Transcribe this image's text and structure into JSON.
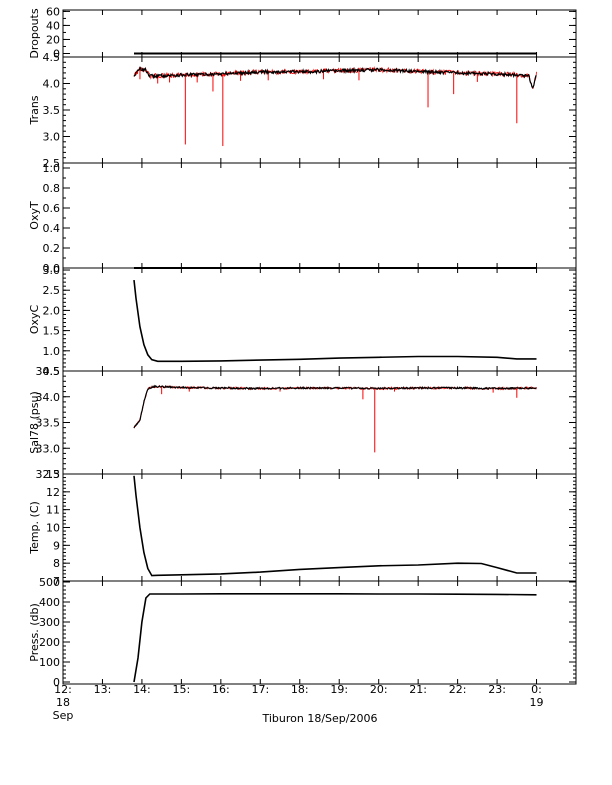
{
  "chart_data": {
    "type": "line",
    "footer_label": "Tiburon 18/Sep/2006",
    "colors": {
      "primary": "#000000",
      "raw": "#ff0000"
    },
    "x_axis": {
      "range_hours": [
        12,
        25
      ],
      "ticks": [
        {
          "hour": 12,
          "label": "12:",
          "sub1": "18",
          "sub2": "Sep"
        },
        {
          "hour": 13,
          "label": "13:"
        },
        {
          "hour": 14,
          "label": "14:"
        },
        {
          "hour": 15,
          "label": "15:"
        },
        {
          "hour": 16,
          "label": "16:"
        },
        {
          "hour": 17,
          "label": "17:"
        },
        {
          "hour": 18,
          "label": "18:"
        },
        {
          "hour": 19,
          "label": "19:"
        },
        {
          "hour": 20,
          "label": "20:"
        },
        {
          "hour": 21,
          "label": "21:"
        },
        {
          "hour": 22,
          "label": "22:"
        },
        {
          "hour": 23,
          "label": "23:"
        },
        {
          "hour": 24,
          "label": "0:",
          "sub1": "19"
        }
      ]
    },
    "panels": [
      {
        "id": "dropouts",
        "ylabel": "Dropouts",
        "ylim": [
          -5,
          62
        ],
        "ticks": [
          {
            "v": 0,
            "l": "0"
          },
          {
            "v": 20,
            "l": "20"
          },
          {
            "v": 40,
            "l": "40"
          },
          {
            "v": 60,
            "l": "60"
          }
        ],
        "minor": 10,
        "series": [
          {
            "style": "thick",
            "points": [
              [
                13.8,
                0
              ],
              [
                24.0,
                0
              ]
            ]
          }
        ]
      },
      {
        "id": "trans",
        "ylabel": "Trans",
        "ylim": [
          2.5,
          4.5
        ],
        "ticks": [
          {
            "v": 2.5,
            "l": "2.5"
          },
          {
            "v": 3.0,
            "l": "3.0"
          },
          {
            "v": 3.5,
            "l": "3.5"
          },
          {
            "v": 4.0,
            "l": "4.0"
          },
          {
            "v": 4.5,
            "l": "4.5"
          }
        ],
        "minor": 0.1,
        "spikes": [
          [
            13.95,
            4.08
          ],
          [
            14.4,
            4.0
          ],
          [
            14.7,
            4.02
          ],
          [
            15.1,
            2.85
          ],
          [
            15.4,
            4.02
          ],
          [
            15.8,
            3.85
          ],
          [
            16.05,
            2.82
          ],
          [
            16.5,
            4.05
          ],
          [
            17.2,
            4.06
          ],
          [
            18.6,
            4.08
          ],
          [
            19.5,
            4.06
          ],
          [
            21.25,
            3.55
          ],
          [
            21.9,
            3.8
          ],
          [
            22.5,
            4.03
          ],
          [
            23.5,
            3.25
          ]
        ],
        "series": [
          {
            "style": "noisy",
            "noise": 0.03,
            "points": [
              [
                13.8,
                4.15
              ],
              [
                13.95,
                4.28
              ],
              [
                14.1,
                4.25
              ],
              [
                14.2,
                4.14
              ],
              [
                15.0,
                4.16
              ],
              [
                16.0,
                4.18
              ],
              [
                17.0,
                4.22
              ],
              [
                18.0,
                4.22
              ],
              [
                19.0,
                4.24
              ],
              [
                20.0,
                4.26
              ],
              [
                21.0,
                4.23
              ],
              [
                22.0,
                4.2
              ],
              [
                23.0,
                4.18
              ],
              [
                23.8,
                4.15
              ],
              [
                23.9,
                3.9
              ],
              [
                24.0,
                4.18
              ]
            ]
          }
        ]
      },
      {
        "id": "oxyt",
        "ylabel": "OxyT",
        "ylim": [
          0,
          1.05
        ],
        "ticks": [
          {
            "v": 0,
            "l": "0.0"
          },
          {
            "v": 0.2,
            "l": "0.2"
          },
          {
            "v": 0.4,
            "l": "0.4"
          },
          {
            "v": 0.6,
            "l": "0.6"
          },
          {
            "v": 0.8,
            "l": "0.8"
          },
          {
            "v": 1.0,
            "l": "1.0"
          }
        ],
        "minor": 0.1,
        "series": [
          {
            "style": "thick",
            "points": [
              [
                13.8,
                0
              ],
              [
                24.0,
                0
              ]
            ]
          }
        ]
      },
      {
        "id": "oxyc",
        "ylabel": "OxyC",
        "ylim": [
          0.5,
          3.05
        ],
        "ticks": [
          {
            "v": 0.5,
            "l": "0.5"
          },
          {
            "v": 1.0,
            "l": "1.0"
          },
          {
            "v": 1.5,
            "l": "1.5"
          },
          {
            "v": 2.0,
            "l": "2.0"
          },
          {
            "v": 2.5,
            "l": "2.5"
          },
          {
            "v": 3.0,
            "l": "3.0"
          }
        ],
        "minor": 0.1,
        "series": [
          {
            "style": "line",
            "points": [
              [
                13.8,
                2.75
              ],
              [
                13.85,
                2.3
              ],
              [
                13.95,
                1.6
              ],
              [
                14.05,
                1.15
              ],
              [
                14.15,
                0.9
              ],
              [
                14.25,
                0.78
              ],
              [
                14.4,
                0.74
              ],
              [
                15.0,
                0.74
              ],
              [
                16.0,
                0.75
              ],
              [
                17.0,
                0.77
              ],
              [
                18.0,
                0.79
              ],
              [
                19.0,
                0.82
              ],
              [
                20.0,
                0.84
              ],
              [
                21.0,
                0.86
              ],
              [
                22.0,
                0.86
              ],
              [
                23.0,
                0.84
              ],
              [
                23.5,
                0.8
              ],
              [
                24.0,
                0.8
              ]
            ]
          }
        ]
      },
      {
        "id": "sal78",
        "ylabel": "Sal78 (psu)",
        "ylim": [
          32.5,
          34.5
        ],
        "ticks": [
          {
            "v": 32.5,
            "l": "32.5"
          },
          {
            "v": 33.0,
            "l": "33.0"
          },
          {
            "v": 33.5,
            "l": "33.5"
          },
          {
            "v": 34.0,
            "l": "34.0"
          },
          {
            "v": 34.5,
            "l": "34.5"
          }
        ],
        "minor": 0.1,
        "spikes": [
          [
            14.5,
            34.05
          ],
          [
            15.2,
            34.1
          ],
          [
            17.5,
            34.1
          ],
          [
            19.6,
            33.95
          ],
          [
            19.9,
            32.92
          ],
          [
            20.4,
            34.1
          ],
          [
            22.9,
            34.08
          ],
          [
            23.5,
            33.98
          ]
        ],
        "series": [
          {
            "style": "noisy",
            "noise": 0.015,
            "points": [
              [
                13.8,
                33.4
              ],
              [
                13.95,
                33.55
              ],
              [
                14.05,
                33.9
              ],
              [
                14.15,
                34.15
              ],
              [
                14.3,
                34.2
              ],
              [
                15.0,
                34.18
              ],
              [
                16.0,
                34.17
              ],
              [
                17.0,
                34.16
              ],
              [
                18.0,
                34.17
              ],
              [
                19.0,
                34.17
              ],
              [
                20.0,
                34.16
              ],
              [
                21.0,
                34.17
              ],
              [
                22.0,
                34.17
              ],
              [
                23.0,
                34.16
              ],
              [
                24.0,
                34.17
              ]
            ]
          }
        ]
      },
      {
        "id": "temp",
        "ylabel": "Temp. (C)",
        "ylim": [
          7,
          13
        ],
        "ticks": [
          {
            "v": 7,
            "l": "7"
          },
          {
            "v": 8,
            "l": "8"
          },
          {
            "v": 9,
            "l": "9"
          },
          {
            "v": 10,
            "l": "10"
          },
          {
            "v": 11,
            "l": "11"
          },
          {
            "v": 12,
            "l": "12"
          },
          {
            "v": 13,
            "l": "13"
          }
        ],
        "minor": 0.2,
        "series": [
          {
            "style": "line",
            "points": [
              [
                13.8,
                12.9
              ],
              [
                13.85,
                11.8
              ],
              [
                13.95,
                10.0
              ],
              [
                14.05,
                8.6
              ],
              [
                14.15,
                7.7
              ],
              [
                14.25,
                7.3
              ],
              [
                14.4,
                7.32
              ],
              [
                15.0,
                7.35
              ],
              [
                16.0,
                7.4
              ],
              [
                17.0,
                7.5
              ],
              [
                18.0,
                7.65
              ],
              [
                19.0,
                7.75
              ],
              [
                20.0,
                7.85
              ],
              [
                21.0,
                7.9
              ],
              [
                22.0,
                8.0
              ],
              [
                22.6,
                7.98
              ],
              [
                23.0,
                7.75
              ],
              [
                23.5,
                7.45
              ],
              [
                24.0,
                7.45
              ]
            ]
          }
        ]
      },
      {
        "id": "press",
        "ylabel": "Press. (db)",
        "ylim": [
          -10,
          505
        ],
        "ticks": [
          {
            "v": 0,
            "l": "0"
          },
          {
            "v": 100,
            "l": "100"
          },
          {
            "v": 200,
            "l": "200"
          },
          {
            "v": 300,
            "l": "300"
          },
          {
            "v": 400,
            "l": "400"
          },
          {
            "v": 500,
            "l": "500"
          }
        ],
        "minor": 20,
        "series": [
          {
            "style": "line",
            "points": [
              [
                13.8,
                0
              ],
              [
                13.9,
                120
              ],
              [
                14.0,
                300
              ],
              [
                14.1,
                420
              ],
              [
                14.2,
                440
              ],
              [
                15.0,
                440
              ],
              [
                16.0,
                441
              ],
              [
                17.0,
                441
              ],
              [
                18.0,
                441
              ],
              [
                19.0,
                441
              ],
              [
                20.0,
                440
              ],
              [
                21.0,
                440
              ],
              [
                22.0,
                439
              ],
              [
                23.0,
                438
              ],
              [
                24.0,
                436
              ]
            ]
          }
        ]
      }
    ]
  }
}
